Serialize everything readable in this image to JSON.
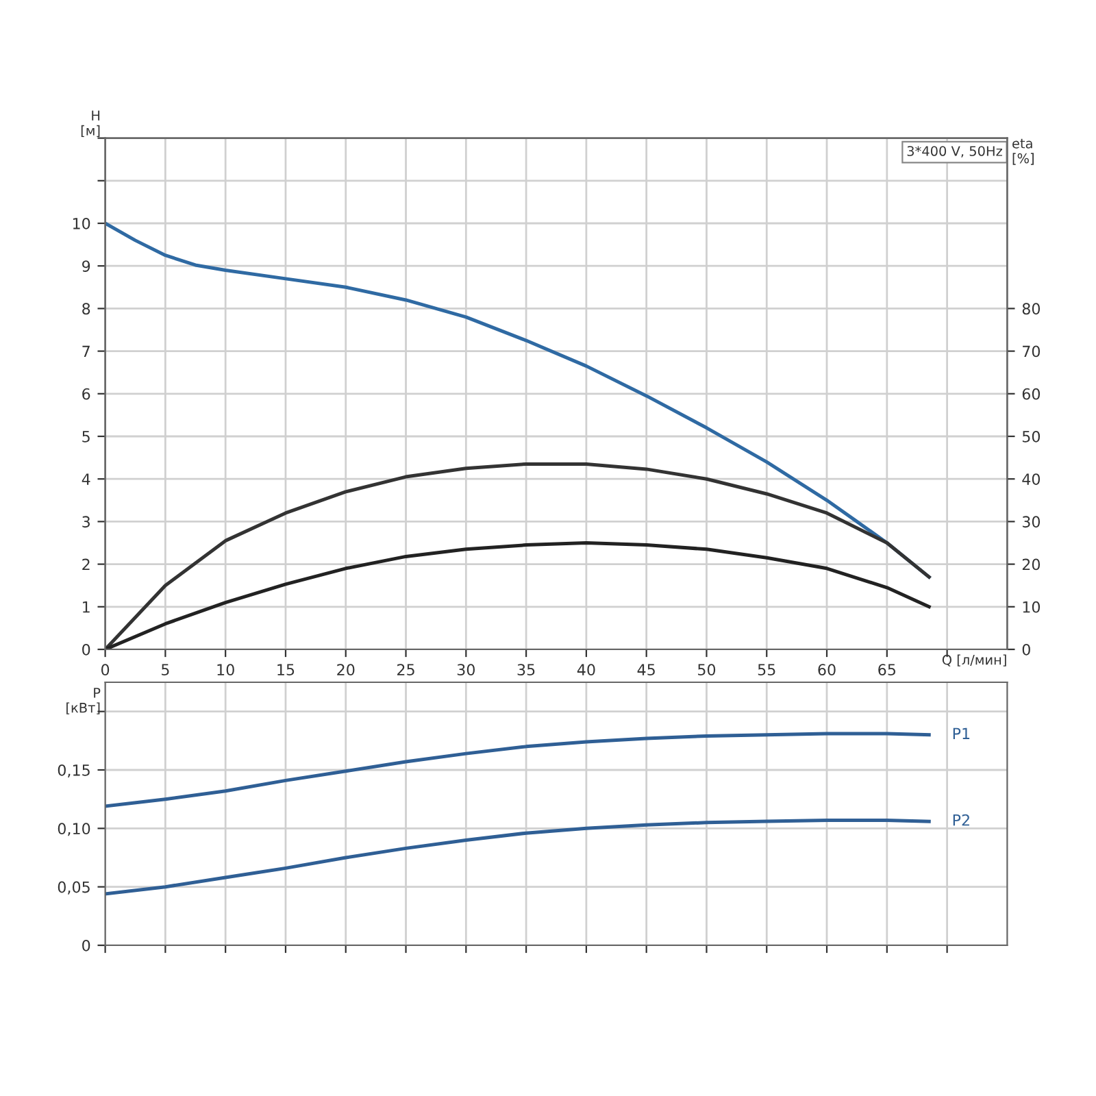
{
  "chart_data": [
    {
      "type": "line",
      "ylabel": "H\n[м]",
      "y2label": "eta\n[%]",
      "xlabel": "Q [л/мин]",
      "annotations": [
        "3*400 V, 50Hz"
      ],
      "xlim": [
        0,
        75
      ],
      "xticks": [
        0,
        5,
        10,
        15,
        20,
        25,
        30,
        35,
        40,
        45,
        50,
        55,
        60,
        65,
        {
          "value": 70,
          "label": null
        }
      ],
      "ylim": [
        0,
        12
      ],
      "yticks": [
        0,
        1,
        2,
        3,
        4,
        5,
        6,
        7,
        8,
        9,
        10,
        {
          "value": 11,
          "label": null
        },
        {
          "value": 12,
          "label": null
        }
      ],
      "y2lim": [
        0,
        120
      ],
      "y2ticks": [
        0,
        10,
        20,
        30,
        40,
        50,
        60,
        70,
        80
      ],
      "grid": true,
      "marker": "none",
      "line_style": "solid",
      "series": [
        {
          "color": "#2f6aa3",
          "x": [
            0,
            2.5,
            5,
            7.5,
            10,
            15,
            20,
            25,
            30,
            35,
            40,
            45,
            50,
            55,
            60,
            62.5,
            65,
            68.5
          ],
          "values": [
            10,
            9.6,
            9.25,
            9.02,
            8.9,
            8.7,
            8.5,
            8.2,
            7.8,
            7.25,
            6.65,
            5.95,
            5.2,
            4.4,
            3.5,
            3.0,
            2.5,
            1.7
          ]
        },
        {
          "color": "#333333",
          "axis": "y2",
          "x": [
            0,
            5,
            10,
            15,
            20,
            25,
            30,
            35,
            40,
            45,
            50,
            55,
            60,
            65,
            68.5
          ],
          "values": [
            0,
            15,
            25.5,
            32,
            37,
            40.5,
            42.5,
            43.5,
            43.5,
            42.3,
            40,
            36.5,
            32,
            25,
            17
          ]
        },
        {
          "color": "#222222",
          "axis": "y2",
          "x": [
            0,
            5,
            10,
            15,
            20,
            25,
            30,
            35,
            40,
            45,
            50,
            55,
            60,
            65,
            68.5
          ],
          "values": [
            0,
            6,
            11,
            15.3,
            19,
            21.8,
            23.5,
            24.5,
            25,
            24.5,
            23.5,
            21.5,
            19,
            14.5,
            10
          ]
        }
      ]
    },
    {
      "type": "line",
      "ylabel": "P\n[кВт]",
      "tick_labels": "y",
      "xlim": [
        0,
        75
      ],
      "xticks": [
        0,
        5,
        10,
        15,
        20,
        25,
        30,
        35,
        40,
        45,
        50,
        55,
        60,
        65,
        70
      ],
      "ylim": [
        0,
        0.225
      ],
      "yticks": [
        {
          "value": 0,
          "label": "0"
        },
        {
          "value": 0.05,
          "label": "0,05"
        },
        {
          "value": 0.1,
          "label": "0,10"
        },
        {
          "value": 0.15,
          "label": "0,15"
        },
        {
          "value": 0.2,
          "label": null
        }
      ],
      "grid": true,
      "marker": "none",
      "line_style": "solid",
      "series": [
        {
          "name": "P1",
          "color": "#2f5f95",
          "x": [
            0,
            5,
            10,
            15,
            20,
            25,
            30,
            35,
            40,
            45,
            50,
            55,
            60,
            65,
            68.5
          ],
          "values": [
            0.119,
            0.125,
            0.132,
            0.141,
            0.149,
            0.157,
            0.164,
            0.17,
            0.174,
            0.177,
            0.179,
            0.18,
            0.181,
            0.181,
            0.18
          ]
        },
        {
          "name": "P2",
          "color": "#2f5f95",
          "x": [
            0,
            5,
            10,
            15,
            20,
            25,
            30,
            35,
            40,
            45,
            50,
            55,
            60,
            65,
            68.5
          ],
          "values": [
            0.044,
            0.05,
            0.058,
            0.066,
            0.075,
            0.083,
            0.09,
            0.096,
            0.1,
            0.103,
            0.105,
            0.106,
            0.107,
            0.107,
            0.106
          ]
        }
      ]
    }
  ]
}
